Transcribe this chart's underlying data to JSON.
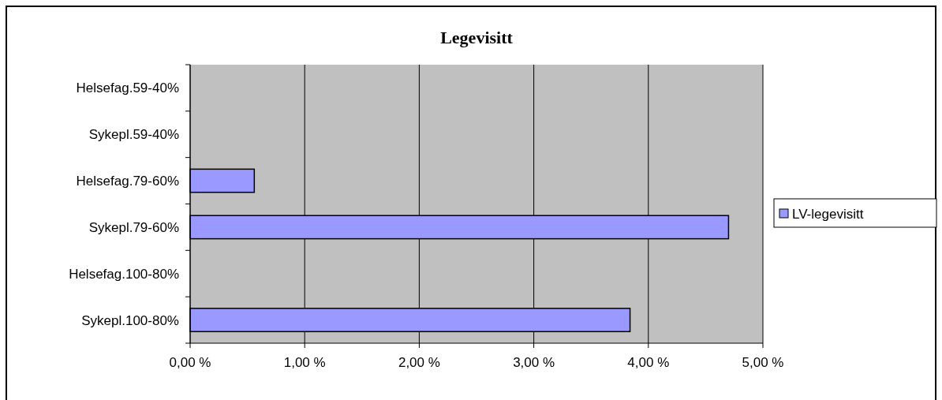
{
  "chart_data": {
    "type": "bar",
    "orientation": "horizontal",
    "title": "Legevisitt",
    "categories": [
      "Helsefag.59-40%",
      "Sykepl.59-40%",
      "Helsefag.79-60%",
      "Sykepl.79-60%",
      "Helsefag.100-80%",
      "Sykepl.100-80%"
    ],
    "series": [
      {
        "name": "LV-legevisitt",
        "color": "#9999ff",
        "values": [
          0,
          0,
          0.56,
          4.7,
          0,
          3.84
        ]
      }
    ],
    "xlim": [
      0,
      5
    ],
    "xticks": [
      {
        "value": 0,
        "label": "0,00 %"
      },
      {
        "value": 1,
        "label": "1,00 %"
      },
      {
        "value": 2,
        "label": "2,00 %"
      },
      {
        "value": 3,
        "label": "3,00 %"
      },
      {
        "value": 4,
        "label": "4,00 %"
      },
      {
        "value": 5,
        "label": "5,00 %"
      }
    ],
    "grid": "x",
    "legend": "right"
  }
}
